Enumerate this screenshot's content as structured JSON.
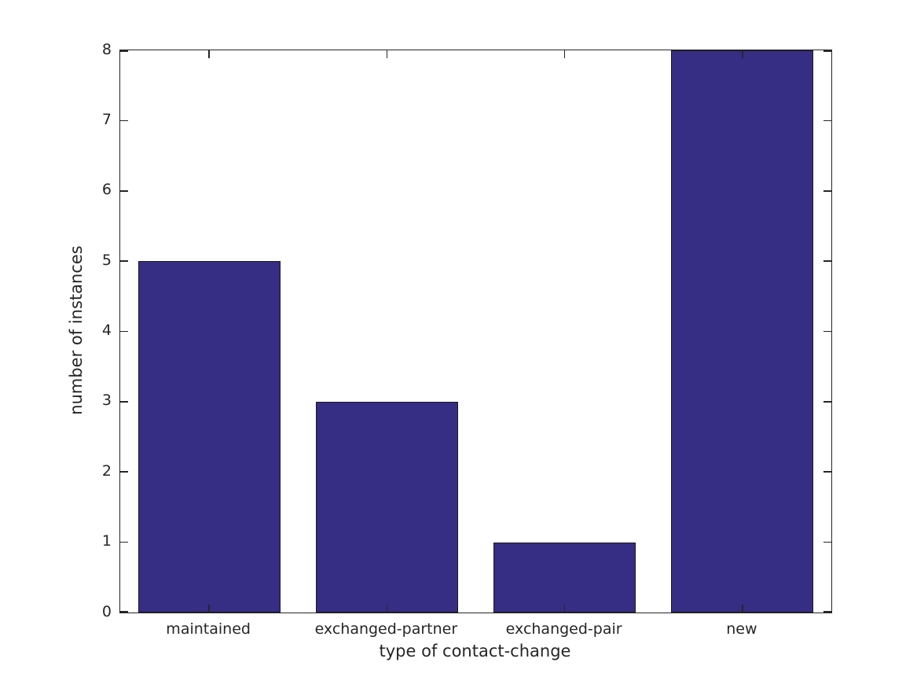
{
  "chart_data": {
    "type": "bar",
    "categories": [
      "maintained",
      "exchanged-partner",
      "exchanged-pair",
      "new"
    ],
    "values": [
      5,
      3,
      1,
      8
    ],
    "title": "",
    "xlabel": "type of contact-change",
    "ylabel": "number of instances",
    "ylim": [
      0,
      8
    ],
    "yticks": [
      0,
      1,
      2,
      3,
      4,
      5,
      6,
      7,
      8
    ],
    "bar_width_fraction": 0.8,
    "grid": false,
    "legend": null,
    "tick_direction": "in",
    "ticks_on_all_sides": true,
    "colors": {
      "bar_fill": "#362d85",
      "bar_edge": "#1a1a1a",
      "axis": "#262626",
      "background": "#ffffff"
    }
  }
}
